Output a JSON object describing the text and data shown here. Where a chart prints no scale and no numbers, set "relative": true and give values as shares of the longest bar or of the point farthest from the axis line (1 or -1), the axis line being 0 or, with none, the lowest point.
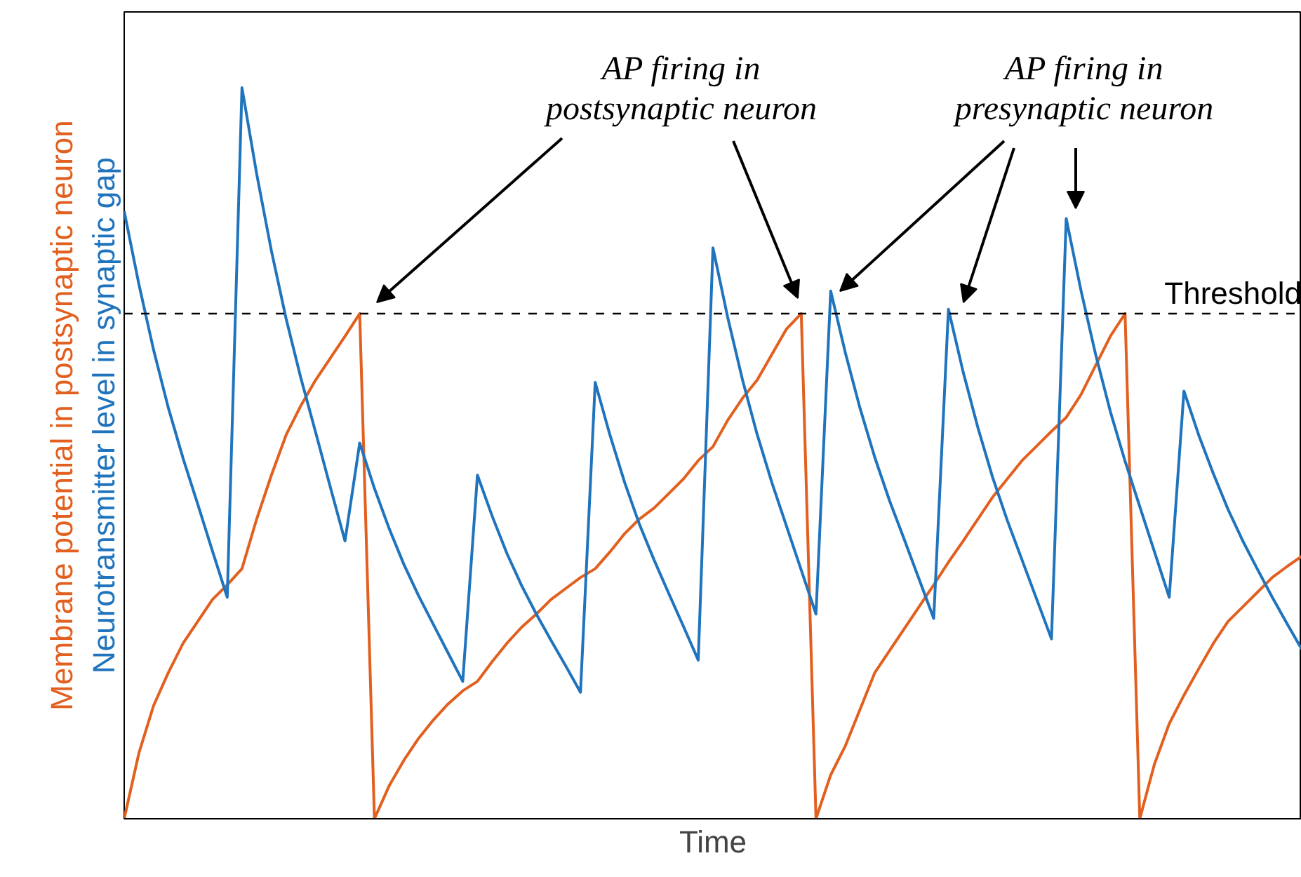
{
  "chart_data": {
    "type": "line",
    "relative": true,
    "xlabel": "Time",
    "marker": "none",
    "line_style": "solid",
    "categories": [
      null,
      null,
      null,
      null,
      null,
      null,
      null,
      null,
      null,
      null,
      null,
      null,
      null,
      null,
      null,
      null,
      null,
      null,
      null,
      null,
      null,
      null,
      null,
      null,
      null,
      null,
      null,
      null,
      null,
      null,
      null,
      null,
      null,
      null,
      null,
      null,
      null,
      null,
      null,
      null,
      null,
      null,
      null,
      null,
      null,
      null,
      null,
      null,
      null,
      null,
      null,
      null,
      null,
      null,
      null,
      null,
      null,
      null,
      null,
      null,
      null,
      null,
      null,
      null,
      null,
      null,
      null,
      null,
      null,
      null,
      null,
      null,
      null,
      null,
      null,
      null,
      null,
      null,
      null,
      null,
      null
    ],
    "series": [
      {
        "name": "Membrane potential in postsynaptic neuron",
        "color": "#e2601f",
        "values": [
          0,
          0.09,
          0.155,
          0.2,
          0.24,
          0.27,
          0.3,
          0.32,
          0.342,
          0.41,
          0.47,
          0.525,
          0.565,
          0.6,
          0.63,
          0.66,
          0.691,
          0,
          0.045,
          0.08,
          0.11,
          0.135,
          0.157,
          0.175,
          0.188,
          0.215,
          0.24,
          0.262,
          0.28,
          0.3,
          0.315,
          0.33,
          0.342,
          0.365,
          0.39,
          0.41,
          0.425,
          0.445,
          0.465,
          0.49,
          0.509,
          0.545,
          0.575,
          0.6,
          0.635,
          0.67,
          0.691,
          0,
          0.06,
          0.1,
          0.15,
          0.2,
          0.23,
          0.26,
          0.29,
          0.32,
          0.351,
          0.38,
          0.41,
          0.44,
          0.465,
          0.49,
          0.51,
          0.53,
          0.549,
          0.58,
          0.62,
          0.66,
          0.691,
          0,
          0.075,
          0.13,
          0.169,
          0.205,
          0.24,
          0.27,
          0.29,
          0.31,
          0.33,
          0.345,
          0.359
        ]
      },
      {
        "name": "Neurotransmitter level in synaptic gap",
        "color": "#1f74bd",
        "values": [
          0.831,
          0.731,
          0.641,
          0.562,
          0.493,
          0.43,
          0.366,
          0.303,
          1.0,
          0.882,
          0.777,
          0.684,
          0.603,
          0.529,
          0.454,
          0.38,
          0.514,
          0.452,
          0.397,
          0.348,
          0.305,
          0.266,
          0.227,
          0.188,
          0.47,
          0.414,
          0.363,
          0.319,
          0.28,
          0.244,
          0.209,
          0.173,
          0.597,
          0.525,
          0.46,
          0.403,
          0.354,
          0.308,
          0.263,
          0.217,
          0.781,
          0.686,
          0.601,
          0.526,
          0.46,
          0.4,
          0.34,
          0.28,
          0.722,
          0.637,
          0.561,
          0.494,
          0.435,
          0.382,
          0.328,
          0.274,
          0.697,
          0.611,
          0.535,
          0.467,
          0.408,
          0.354,
          0.3,
          0.246,
          0.821,
          0.723,
          0.635,
          0.557,
          0.489,
          0.427,
          0.365,
          0.303,
          0.585,
          0.525,
          0.472,
          0.423,
          0.38,
          0.341,
          0.303,
          0.267,
          0.232
        ]
      }
    ],
    "ref_lines": [
      {
        "axis": "y",
        "value": 0.691,
        "label": "Threshold",
        "color": "#000000",
        "line_style": "dashed"
      }
    ],
    "annotations": [
      "AP firing in\npostsynaptic neuron",
      "AP firing in\npresynaptic neuron"
    ]
  }
}
